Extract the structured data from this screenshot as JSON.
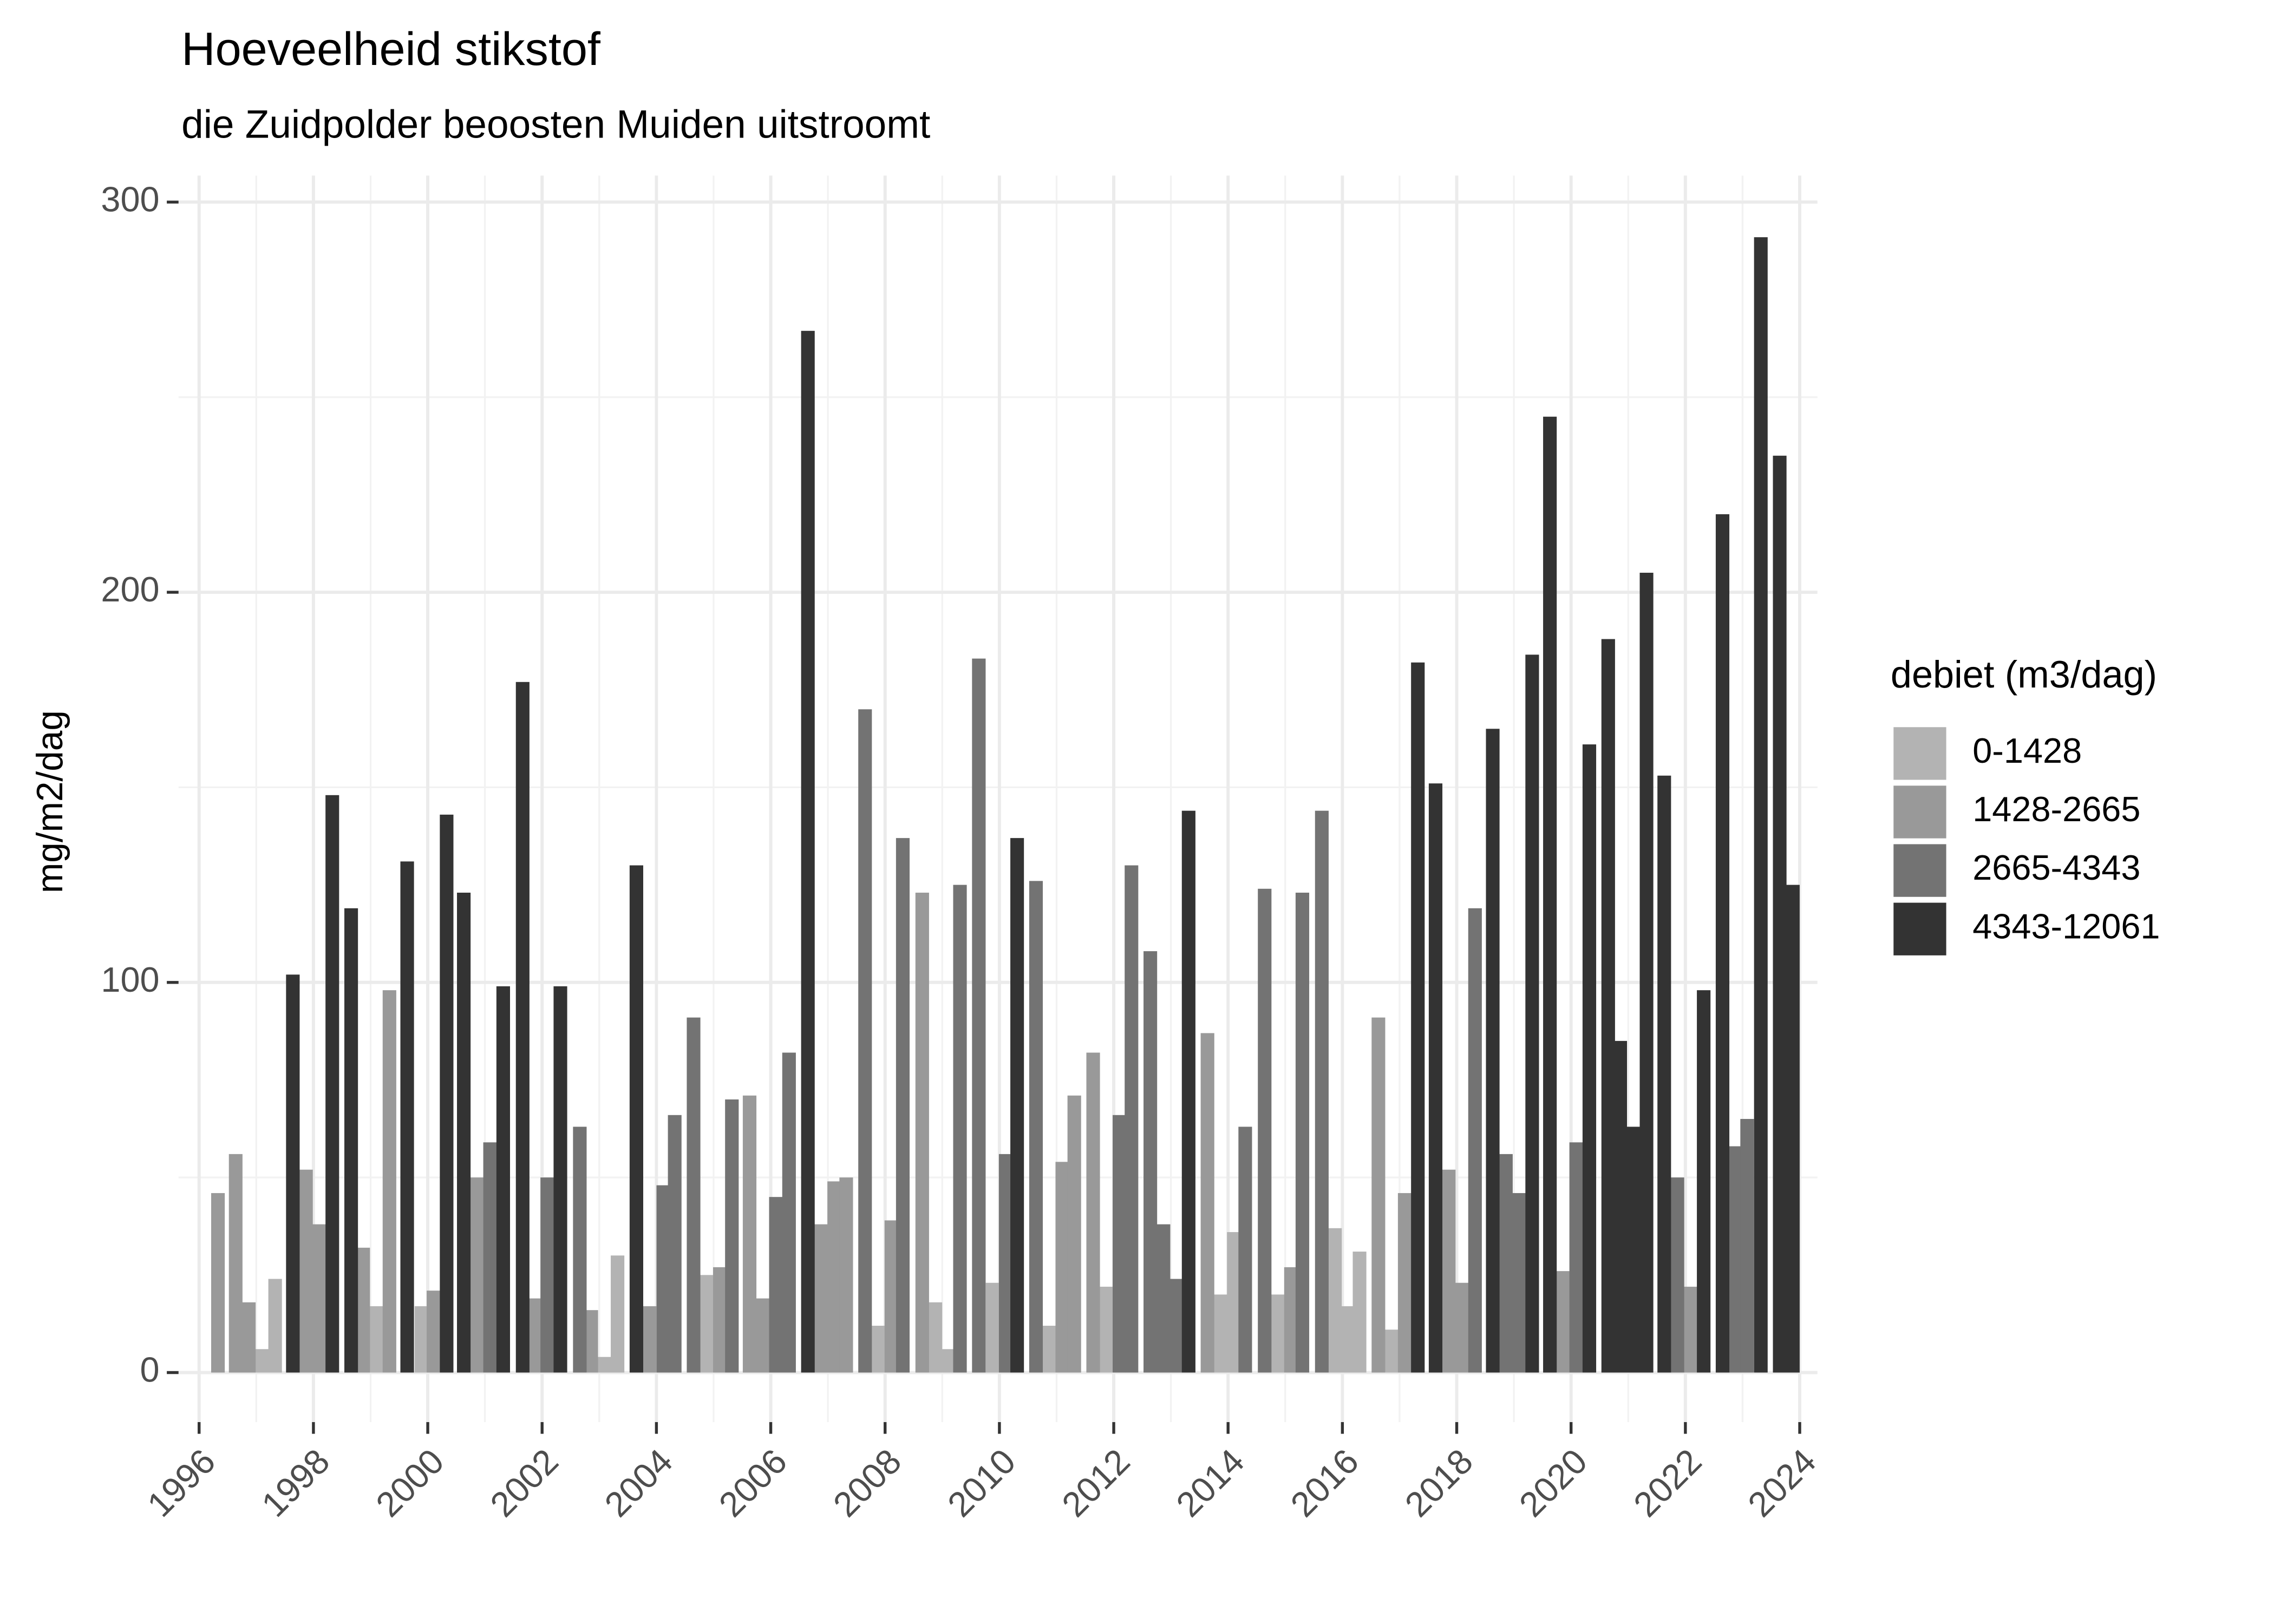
{
  "chart_data": {
    "type": "bar",
    "title": "Hoeveelheid stikstof",
    "subtitle": "die Zuidpolder beoosten Muiden uitstroomt",
    "y_label": "mg/m2/dag",
    "legend_title": "debiet (m3/dag)",
    "legend_position": "right",
    "grid": true,
    "xlim": [
      1995.64,
      2024.31
    ],
    "xticks": [
      1996,
      1998,
      2000,
      2002,
      2004,
      2006,
      2008,
      2010,
      2012,
      2014,
      2016,
      2018,
      2020,
      2022,
      2024
    ],
    "ylim": [
      -12.7,
      306.8
    ],
    "yticks": [
      0,
      100,
      200,
      300
    ],
    "series": [
      {
        "name": "0-1428",
        "color": "#b3b3b3",
        "x": [
          1997.1,
          1997.33,
          1999.1,
          1999.89,
          2003.09,
          2003.32,
          2004.88,
          2007.88,
          2008.88,
          2009.11,
          2009.88,
          2010.87,
          2011.87,
          2013.87,
          2014.1,
          2014.87,
          2015.87,
          2016.1,
          2016.3,
          2016.86
        ],
        "values": [
          6,
          24,
          17,
          17,
          4,
          30,
          25,
          12,
          18,
          6,
          23,
          12,
          22,
          20,
          36,
          20,
          37,
          17,
          31,
          11
        ]
      },
      {
        "name": "1428-2665",
        "color": "#999999",
        "x": [
          1996.33,
          1996.64,
          1996.87,
          1997.87,
          1998.1,
          1998.87,
          1999.33,
          2000.1,
          2000.86,
          2001.89,
          2002.86,
          2003.88,
          2005.11,
          2005.63,
          2005.86,
          2006.88,
          2007.11,
          2007.32,
          2008.11,
          2008.65,
          2011.1,
          2011.31,
          2011.64,
          2013.64,
          2015.1,
          2016.63,
          2017.09,
          2017.86,
          2018.09,
          2019.86,
          2022.09
        ],
        "values": [
          46,
          56,
          18,
          52,
          38,
          32,
          98,
          21,
          50,
          19,
          16,
          17,
          27,
          71,
          19,
          38,
          49,
          50,
          39,
          123,
          54,
          71,
          82,
          87,
          27,
          91,
          46,
          52,
          23,
          26,
          22
        ]
      },
      {
        "name": "2665-4343",
        "color": "#737373",
        "x": [
          2001.09,
          2002.09,
          2002.66,
          2004.12,
          2004.32,
          2004.65,
          2005.32,
          2006.09,
          2006.32,
          2007.65,
          2008.31,
          2009.31,
          2009.64,
          2010.11,
          2010.64,
          2012.1,
          2012.31,
          2012.64,
          2012.87,
          2013.1,
          2014.3,
          2014.64,
          2015.3,
          2015.64,
          2018.32,
          2018.86,
          2019.09,
          2020.09,
          2021.86,
          2022.88,
          2023.08
        ],
        "values": [
          59,
          50,
          63,
          48,
          66,
          91,
          70,
          45,
          82,
          170,
          137,
          125,
          183,
          56,
          126,
          66,
          130,
          108,
          38,
          24,
          63,
          124,
          123,
          144,
          119,
          56,
          46,
          59,
          50,
          58,
          65
        ]
      },
      {
        "name": "4343-12061",
        "color": "#333333",
        "x": [
          1997.64,
          1998.33,
          1998.66,
          1999.64,
          2000.33,
          2000.63,
          2001.32,
          2001.66,
          2002.32,
          2003.65,
          2006.65,
          2010.31,
          2013.31,
          2017.32,
          2017.63,
          2018.63,
          2019.32,
          2019.63,
          2020.32,
          2020.65,
          2020.86,
          2021.09,
          2021.32,
          2021.63,
          2022.32,
          2022.65,
          2023.32,
          2023.65,
          2023.88
        ],
        "values": [
          102,
          148,
          119,
          131,
          143,
          123,
          99,
          177,
          99,
          130,
          267,
          137,
          144,
          182,
          151,
          165,
          184,
          245,
          161,
          188,
          85,
          63,
          205,
          153,
          98,
          220,
          291,
          235,
          125
        ]
      }
    ]
  }
}
